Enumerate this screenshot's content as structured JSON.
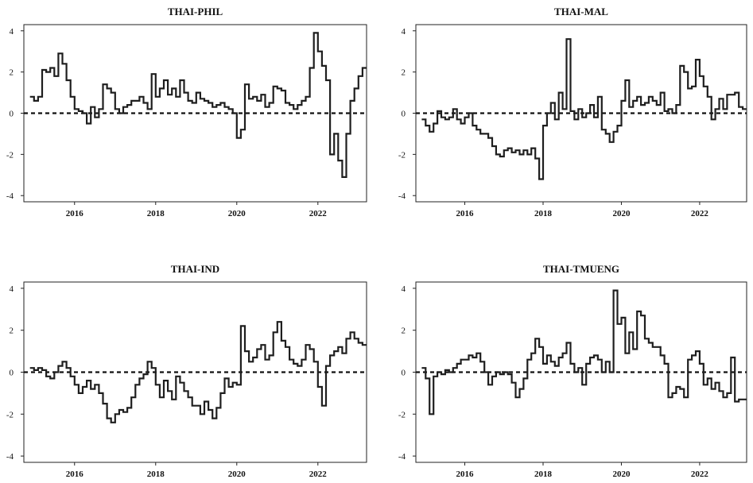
{
  "chart_data": [
    {
      "type": "line",
      "title": "THAI-PHIL",
      "xlabel": "",
      "ylabel": "",
      "xlim": [
        2014.75,
        2023.2
      ],
      "ylim": [
        -4.3,
        4.3
      ],
      "xticks": [
        2016,
        2018,
        2020,
        2022
      ],
      "xtick_labels": [
        "2016",
        "2018",
        "2020",
        "2022"
      ],
      "yticks": [
        -4,
        -2,
        0,
        2,
        4
      ],
      "ytick_labels": [
        "-4",
        "-2",
        "0",
        "2",
        "4"
      ],
      "reference_line": {
        "y": 0,
        "style": "dashed"
      },
      "grid": false,
      "series": [
        {
          "x": [
            2014.9,
            2015.0,
            2015.1,
            2015.2,
            2015.3,
            2015.4,
            2015.5,
            2015.6,
            2015.7,
            2015.8,
            2015.9,
            2016.0,
            2016.1,
            2016.2,
            2016.3,
            2016.4,
            2016.5,
            2016.6,
            2016.7,
            2016.8,
            2016.9,
            2017.0,
            2017.1,
            2017.2,
            2017.3,
            2017.4,
            2017.5,
            2017.6,
            2017.7,
            2017.8,
            2017.9,
            2018.0,
            2018.1,
            2018.2,
            2018.3,
            2018.4,
            2018.5,
            2018.6,
            2018.7,
            2018.8,
            2018.9,
            2019.0,
            2019.1,
            2019.2,
            2019.3,
            2019.4,
            2019.5,
            2019.6,
            2019.7,
            2019.8,
            2019.9,
            2020.0,
            2020.1,
            2020.2,
            2020.3,
            2020.4,
            2020.5,
            2020.6,
            2020.7,
            2020.8,
            2020.9,
            2021.0,
            2021.1,
            2021.2,
            2021.3,
            2021.4,
            2021.5,
            2021.6,
            2021.7,
            2021.8,
            2021.9,
            2022.0,
            2022.1,
            2022.2,
            2022.3,
            2022.4,
            2022.5,
            2022.6,
            2022.7,
            2022.8,
            2022.9,
            2023.0,
            2023.1
          ],
          "y": [
            0.8,
            0.6,
            0.8,
            2.1,
            2.0,
            2.2,
            1.8,
            2.9,
            2.4,
            1.6,
            0.8,
            0.2,
            0.1,
            0.0,
            -0.5,
            0.3,
            -0.2,
            0.2,
            1.4,
            1.2,
            1.0,
            0.2,
            0.0,
            0.3,
            0.4,
            0.6,
            0.6,
            0.8,
            0.5,
            0.2,
            1.9,
            0.8,
            1.2,
            1.6,
            0.9,
            1.2,
            0.8,
            1.6,
            1.0,
            0.6,
            0.5,
            1.0,
            0.7,
            0.6,
            0.5,
            0.3,
            0.4,
            0.5,
            0.3,
            0.2,
            0.0,
            -1.2,
            -0.8,
            1.4,
            0.7,
            0.8,
            0.6,
            0.9,
            0.3,
            0.5,
            1.3,
            1.2,
            1.1,
            0.5,
            0.4,
            0.2,
            0.4,
            0.6,
            0.8,
            2.2,
            3.9,
            3.0,
            2.3,
            1.6,
            -2.0,
            -1.0,
            -2.3,
            -3.1,
            -1.0,
            0.6,
            1.2,
            1.8,
            2.2
          ]
        }
      ]
    },
    {
      "type": "line",
      "title": "THAI-MAL",
      "xlabel": "",
      "ylabel": "",
      "xlim": [
        2014.75,
        2023.2
      ],
      "ylim": [
        -4.3,
        4.3
      ],
      "xticks": [
        2016,
        2018,
        2020,
        2022
      ],
      "xtick_labels": [
        "2016",
        "2018",
        "2020",
        "2022"
      ],
      "yticks": [
        -4,
        -2,
        0,
        2,
        4
      ],
      "ytick_labels": [
        "-4",
        "-2",
        "0",
        "2",
        "4"
      ],
      "reference_line": {
        "y": 0,
        "style": "dashed"
      },
      "grid": false,
      "series": [
        {
          "x": [
            2014.9,
            2015.0,
            2015.1,
            2015.2,
            2015.3,
            2015.4,
            2015.5,
            2015.6,
            2015.7,
            2015.8,
            2015.9,
            2016.0,
            2016.1,
            2016.2,
            2016.3,
            2016.4,
            2016.5,
            2016.6,
            2016.7,
            2016.8,
            2016.9,
            2017.0,
            2017.1,
            2017.2,
            2017.3,
            2017.4,
            2017.5,
            2017.6,
            2017.7,
            2017.8,
            2017.9,
            2018.0,
            2018.1,
            2018.2,
            2018.3,
            2018.4,
            2018.5,
            2018.6,
            2018.7,
            2018.8,
            2018.9,
            2019.0,
            2019.1,
            2019.2,
            2019.3,
            2019.4,
            2019.5,
            2019.6,
            2019.7,
            2019.8,
            2019.9,
            2020.0,
            2020.1,
            2020.2,
            2020.3,
            2020.4,
            2020.5,
            2020.6,
            2020.7,
            2020.8,
            2020.9,
            2021.0,
            2021.1,
            2021.2,
            2021.3,
            2021.4,
            2021.5,
            2021.6,
            2021.7,
            2021.8,
            2021.9,
            2022.0,
            2022.1,
            2022.2,
            2022.3,
            2022.4,
            2022.5,
            2022.6,
            2022.7,
            2022.8,
            2022.9,
            2023.0,
            2023.1
          ],
          "y": [
            -0.3,
            -0.6,
            -0.9,
            -0.5,
            0.1,
            -0.2,
            -0.3,
            -0.2,
            0.2,
            -0.3,
            -0.5,
            -0.2,
            0.0,
            -0.6,
            -0.8,
            -1.0,
            -1.0,
            -1.2,
            -1.6,
            -2.0,
            -2.1,
            -1.8,
            -1.7,
            -1.9,
            -1.8,
            -2.0,
            -1.8,
            -2.0,
            -1.7,
            -2.2,
            -3.2,
            -0.6,
            0.0,
            0.5,
            -0.3,
            1.0,
            0.2,
            3.6,
            0.1,
            -0.3,
            0.2,
            -0.2,
            0.0,
            0.4,
            -0.2,
            0.8,
            -0.8,
            -1.0,
            -1.4,
            -0.9,
            -0.6,
            0.6,
            1.6,
            0.3,
            0.6,
            0.8,
            0.4,
            0.5,
            0.8,
            0.6,
            0.4,
            1.0,
            0.1,
            0.2,
            0.0,
            0.4,
            2.3,
            2.0,
            1.2,
            1.3,
            2.6,
            1.8,
            1.3,
            0.8,
            -0.3,
            0.2,
            0.7,
            0.2,
            0.9,
            0.9,
            1.0,
            0.3,
            0.2
          ]
        }
      ]
    },
    {
      "type": "line",
      "title": "THAI-IND",
      "xlabel": "",
      "ylabel": "",
      "xlim": [
        2014.75,
        2023.2
      ],
      "ylim": [
        -4.3,
        4.3
      ],
      "xticks": [
        2016,
        2018,
        2020,
        2022
      ],
      "xtick_labels": [
        "2016",
        "2018",
        "2020",
        "2022"
      ],
      "yticks": [
        -4,
        -2,
        0,
        2,
        4
      ],
      "ytick_labels": [
        "-4",
        "-2",
        "0",
        "2",
        "4"
      ],
      "reference_line": {
        "y": 0,
        "style": "dashed"
      },
      "grid": false,
      "series": [
        {
          "x": [
            2014.9,
            2015.0,
            2015.1,
            2015.2,
            2015.3,
            2015.4,
            2015.5,
            2015.6,
            2015.7,
            2015.8,
            2015.9,
            2016.0,
            2016.1,
            2016.2,
            2016.3,
            2016.4,
            2016.5,
            2016.6,
            2016.7,
            2016.8,
            2016.9,
            2017.0,
            2017.1,
            2017.2,
            2017.3,
            2017.4,
            2017.5,
            2017.6,
            2017.7,
            2017.8,
            2017.9,
            2018.0,
            2018.1,
            2018.2,
            2018.3,
            2018.4,
            2018.5,
            2018.6,
            2018.7,
            2018.8,
            2018.9,
            2019.0,
            2019.1,
            2019.2,
            2019.3,
            2019.4,
            2019.5,
            2019.6,
            2019.7,
            2019.8,
            2019.9,
            2020.0,
            2020.1,
            2020.2,
            2020.3,
            2020.4,
            2020.5,
            2020.6,
            2020.7,
            2020.8,
            2020.9,
            2021.0,
            2021.1,
            2021.2,
            2021.3,
            2021.4,
            2021.5,
            2021.6,
            2021.7,
            2021.8,
            2021.9,
            2022.0,
            2022.1,
            2022.2,
            2022.3,
            2022.4,
            2022.5,
            2022.6,
            2022.7,
            2022.8,
            2022.9,
            2023.0,
            2023.1
          ],
          "y": [
            0.2,
            0.1,
            0.2,
            0.1,
            -0.2,
            -0.3,
            0.0,
            0.3,
            0.5,
            0.2,
            -0.2,
            -0.6,
            -1.0,
            -0.7,
            -0.4,
            -0.8,
            -0.6,
            -1.0,
            -1.5,
            -2.2,
            -2.4,
            -2.0,
            -1.8,
            -1.9,
            -1.7,
            -1.2,
            -0.6,
            -0.3,
            -0.1,
            0.5,
            0.2,
            -0.6,
            -1.2,
            -0.4,
            -0.9,
            -1.3,
            -0.2,
            -0.5,
            -0.9,
            -1.2,
            -1.6,
            -1.6,
            -2.0,
            -1.4,
            -1.8,
            -2.2,
            -1.7,
            -1.0,
            -0.3,
            -0.7,
            -0.5,
            -0.6,
            2.2,
            1.0,
            0.5,
            0.7,
            1.1,
            1.3,
            0.6,
            0.8,
            1.9,
            2.4,
            1.5,
            1.2,
            0.6,
            0.4,
            0.3,
            0.6,
            1.3,
            1.1,
            0.5,
            -0.7,
            -1.6,
            0.3,
            0.8,
            1.0,
            1.2,
            0.9,
            1.6,
            1.9,
            1.6,
            1.4,
            1.3
          ]
        }
      ]
    },
    {
      "type": "line",
      "title": "THAI-TMUENG",
      "xlabel": "",
      "ylabel": "",
      "xlim": [
        2014.75,
        2023.2
      ],
      "ylim": [
        -4.3,
        4.3
      ],
      "xticks": [
        2016,
        2018,
        2020,
        2022
      ],
      "xtick_labels": [
        "2016",
        "2018",
        "2020",
        "2022"
      ],
      "yticks": [
        -4,
        -2,
        0,
        2,
        4
      ],
      "ytick_labels": [
        "-4",
        "-2",
        "0",
        "2",
        "4"
      ],
      "reference_line": {
        "y": 0,
        "style": "dashed"
      },
      "grid": false,
      "series": [
        {
          "x": [
            2014.9,
            2015.0,
            2015.1,
            2015.2,
            2015.3,
            2015.4,
            2015.5,
            2015.6,
            2015.7,
            2015.8,
            2015.9,
            2016.0,
            2016.1,
            2016.2,
            2016.3,
            2016.4,
            2016.5,
            2016.6,
            2016.7,
            2016.8,
            2016.9,
            2017.0,
            2017.1,
            2017.2,
            2017.3,
            2017.4,
            2017.5,
            2017.6,
            2017.7,
            2017.8,
            2017.9,
            2018.0,
            2018.1,
            2018.2,
            2018.3,
            2018.4,
            2018.5,
            2018.6,
            2018.7,
            2018.8,
            2018.9,
            2019.0,
            2019.1,
            2019.2,
            2019.3,
            2019.4,
            2019.5,
            2019.6,
            2019.7,
            2019.8,
            2019.9,
            2020.0,
            2020.1,
            2020.2,
            2020.3,
            2020.4,
            2020.5,
            2020.6,
            2020.7,
            2020.8,
            2020.9,
            2021.0,
            2021.1,
            2021.2,
            2021.3,
            2021.4,
            2021.5,
            2021.6,
            2021.7,
            2021.8,
            2021.9,
            2022.0,
            2022.1,
            2022.2,
            2022.3,
            2022.4,
            2022.5,
            2022.6,
            2022.7,
            2022.8,
            2022.9,
            2023.0,
            2023.1
          ],
          "y": [
            0.2,
            -0.3,
            -2.0,
            -0.2,
            0.0,
            -0.1,
            0.1,
            0.0,
            0.2,
            0.4,
            0.6,
            0.6,
            0.8,
            0.7,
            0.9,
            0.5,
            0.0,
            -0.6,
            -0.2,
            0.0,
            -0.1,
            0.0,
            -0.1,
            -0.5,
            -1.2,
            -0.8,
            -0.3,
            0.6,
            0.9,
            1.6,
            1.2,
            0.4,
            0.8,
            0.5,
            0.3,
            0.7,
            0.9,
            1.4,
            0.4,
            0.0,
            0.2,
            -0.6,
            0.4,
            0.7,
            0.8,
            0.6,
            0.0,
            0.5,
            0.0,
            3.9,
            2.3,
            2.6,
            0.9,
            1.9,
            1.1,
            2.9,
            2.7,
            1.6,
            1.4,
            1.2,
            1.2,
            0.8,
            0.4,
            -1.2,
            -1.0,
            -0.7,
            -0.8,
            -1.2,
            0.6,
            0.8,
            1.0,
            0.4,
            -0.6,
            -0.3,
            -0.8,
            -0.5,
            -0.9,
            -1.2,
            -1.0,
            0.7,
            -1.4,
            -1.3,
            -1.3
          ]
        }
      ]
    }
  ]
}
